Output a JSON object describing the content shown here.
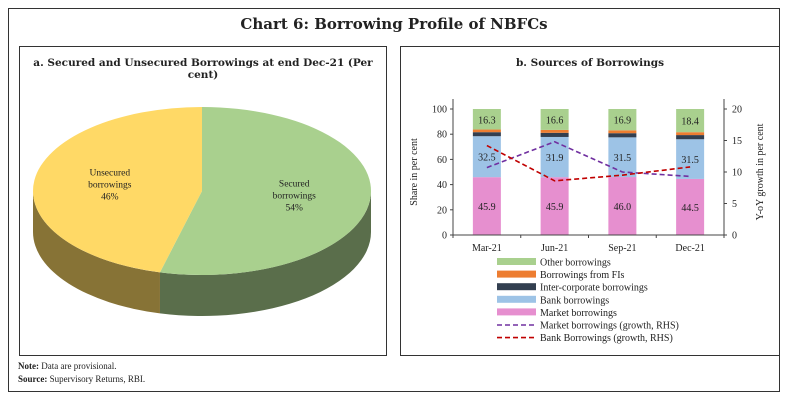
{
  "title": "Chart 6: Borrowing Profile of NBFCs",
  "notes": {
    "note_label": "Note:",
    "note_text": "Data are provisional.",
    "source_label": "Source:",
    "source_text": "Supervisory Returns, RBI."
  },
  "chart_data": [
    {
      "type": "pie",
      "title": "a. Secured and Unsecured Borrowings at end Dec-21 (Per cent)",
      "three_d": true,
      "slices": [
        {
          "label_lines": [
            "Secured",
            "borrowings",
            "54%"
          ],
          "value": 54,
          "color": "#a9d08e"
        },
        {
          "label_lines": [
            "Unsecured",
            "borrowings",
            "46%"
          ],
          "value": 46,
          "color": "#ffd966"
        }
      ]
    },
    {
      "type": "bar",
      "stacked": true,
      "title": "b. Sources of Borrowings",
      "ylabel": "Share in per cent",
      "y2label": "Y-oY growth in per cent",
      "ylim": [
        0,
        100
      ],
      "yticks": [
        "0",
        "20",
        "40",
        "60",
        "80",
        "100"
      ],
      "y2lim": [
        0,
        20
      ],
      "y2ticks": [
        "0",
        "5",
        "10",
        "15",
        "20"
      ],
      "categories": [
        "Mar-21",
        "Jun-21",
        "Sep-21",
        "Dec-21"
      ],
      "series": [
        {
          "name": "Market borrowings",
          "values": [
            45.9,
            45.9,
            46.0,
            44.5
          ],
          "color": "#e68fcf",
          "labeled": true
        },
        {
          "name": "Bank borrowings",
          "values": [
            32.5,
            31.9,
            31.5,
            31.5
          ],
          "color": "#9dc3e6",
          "labeled": true
        },
        {
          "name": "Inter-corporate borrowings",
          "values": [
            3.2,
            3.3,
            3.3,
            3.3
          ],
          "color": "#333f50",
          "labeled": false
        },
        {
          "name": "Borrowings from FIs",
          "values": [
            2.1,
            2.3,
            2.3,
            2.3
          ],
          "color": "#ed7d31",
          "labeled": false
        },
        {
          "name": "Other borrowings",
          "values": [
            16.3,
            16.6,
            16.9,
            18.4
          ],
          "color": "#a9d08e",
          "labeled": true
        }
      ],
      "lines": [
        {
          "name": "Market borrowings (growth, RHS)",
          "values": [
            10.7,
            14.8,
            10.0,
            9.3
          ],
          "color": "#7030a0",
          "axis": "right",
          "dash": true
        },
        {
          "name": "Bank Borrowings (growth, RHS)",
          "values": [
            14.2,
            8.6,
            9.5,
            10.8
          ],
          "color": "#c00000",
          "axis": "right",
          "dash": true
        }
      ],
      "legend_order": [
        "Other borrowings",
        "Borrowings from FIs",
        "Inter-corporate borrowings",
        "Bank borrowings",
        "Market borrowings",
        "Market borrowings (growth, RHS)",
        "Bank Borrowings (growth, RHS)"
      ],
      "legend_placement": "bottom"
    }
  ]
}
